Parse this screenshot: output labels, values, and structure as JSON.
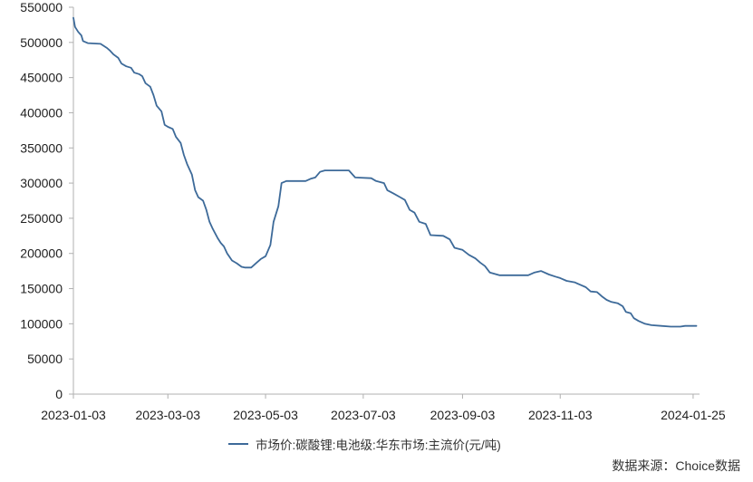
{
  "chart_data": {
    "type": "line",
    "title": "",
    "xlabel": "",
    "ylabel": "",
    "ylim": [
      0,
      550000
    ],
    "y_ticks": [
      0,
      50000,
      100000,
      150000,
      200000,
      250000,
      300000,
      350000,
      400000,
      450000,
      500000,
      550000
    ],
    "y_tick_labels": [
      "0",
      "50000",
      "100000",
      "150000",
      "200000",
      "250000",
      "300000",
      "350000",
      "400000",
      "450000",
      "500000",
      "550000"
    ],
    "x_ticks": [
      "2023-01-03",
      "2023-03-03",
      "2023-05-03",
      "2023-07-03",
      "2023-09-03",
      "2023-11-03",
      "2024-01-25"
    ],
    "x_range": [
      "2023-01-03",
      "2024-01-29"
    ],
    "grid": false,
    "legend_position": "bottom",
    "series": [
      {
        "name": "市场价:碳酸锂:电池级:华东市场:主流价(元/吨)",
        "color": "#3d6a99",
        "points": [
          [
            "2023-01-03",
            535000
          ],
          [
            "2023-01-04",
            522000
          ],
          [
            "2023-01-06",
            515000
          ],
          [
            "2023-01-08",
            510000
          ],
          [
            "2023-01-09",
            502000
          ],
          [
            "2023-01-12",
            499000
          ],
          [
            "2023-01-20",
            498000
          ],
          [
            "2023-01-24",
            492000
          ],
          [
            "2023-01-26",
            488000
          ],
          [
            "2023-01-28",
            483000
          ],
          [
            "2023-01-31",
            478000
          ],
          [
            "2023-02-02",
            470000
          ],
          [
            "2023-02-05",
            466000
          ],
          [
            "2023-02-08",
            464000
          ],
          [
            "2023-02-10",
            457000
          ],
          [
            "2023-02-13",
            455000
          ],
          [
            "2023-02-15",
            452000
          ],
          [
            "2023-02-17",
            442000
          ],
          [
            "2023-02-20",
            437000
          ],
          [
            "2023-02-22",
            425000
          ],
          [
            "2023-02-24",
            410000
          ],
          [
            "2023-02-27",
            402000
          ],
          [
            "2023-03-01",
            383000
          ],
          [
            "2023-03-03",
            380000
          ],
          [
            "2023-03-06",
            377000
          ],
          [
            "2023-03-08",
            366000
          ],
          [
            "2023-03-11",
            357000
          ],
          [
            "2023-03-13",
            340000
          ],
          [
            "2023-03-15",
            327000
          ],
          [
            "2023-03-18",
            312000
          ],
          [
            "2023-03-20",
            290000
          ],
          [
            "2023-03-22",
            280000
          ],
          [
            "2023-03-25",
            275000
          ],
          [
            "2023-03-27",
            262000
          ],
          [
            "2023-03-29",
            245000
          ],
          [
            "2023-03-31",
            235000
          ],
          [
            "2023-04-03",
            222000
          ],
          [
            "2023-04-05",
            215000
          ],
          [
            "2023-04-07",
            210000
          ],
          [
            "2023-04-09",
            200000
          ],
          [
            "2023-04-12",
            190000
          ],
          [
            "2023-04-15",
            186000
          ],
          [
            "2023-04-18",
            181000
          ],
          [
            "2023-04-20",
            180000
          ],
          [
            "2023-04-24",
            180000
          ],
          [
            "2023-04-27",
            186000
          ],
          [
            "2023-04-30",
            192000
          ],
          [
            "2023-05-03",
            196000
          ],
          [
            "2023-05-06",
            212000
          ],
          [
            "2023-05-08",
            245000
          ],
          [
            "2023-05-11",
            267000
          ],
          [
            "2023-05-13",
            300000
          ],
          [
            "2023-05-16",
            303000
          ],
          [
            "2023-05-28",
            303000
          ],
          [
            "2023-05-31",
            306000
          ],
          [
            "2023-06-03",
            308000
          ],
          [
            "2023-06-06",
            316000
          ],
          [
            "2023-06-09",
            318000
          ],
          [
            "2023-06-24",
            318000
          ],
          [
            "2023-06-28",
            308000
          ],
          [
            "2023-07-08",
            307000
          ],
          [
            "2023-07-11",
            303000
          ],
          [
            "2023-07-16",
            300000
          ],
          [
            "2023-07-18",
            290000
          ],
          [
            "2023-07-22",
            285000
          ],
          [
            "2023-07-26",
            280000
          ],
          [
            "2023-07-29",
            276000
          ],
          [
            "2023-08-01",
            262000
          ],
          [
            "2023-08-04",
            258000
          ],
          [
            "2023-08-07",
            245000
          ],
          [
            "2023-08-11",
            242000
          ],
          [
            "2023-08-14",
            226000
          ],
          [
            "2023-08-22",
            225000
          ],
          [
            "2023-08-26",
            220000
          ],
          [
            "2023-08-29",
            208000
          ],
          [
            "2023-09-03",
            205000
          ],
          [
            "2023-09-07",
            198000
          ],
          [
            "2023-09-11",
            193000
          ],
          [
            "2023-09-14",
            187000
          ],
          [
            "2023-09-17",
            182000
          ],
          [
            "2023-09-20",
            173000
          ],
          [
            "2023-09-26",
            169000
          ],
          [
            "2023-10-14",
            169000
          ],
          [
            "2023-10-18",
            173000
          ],
          [
            "2023-10-22",
            175000
          ],
          [
            "2023-10-27",
            170000
          ],
          [
            "2023-10-31",
            167000
          ],
          [
            "2023-11-03",
            165000
          ],
          [
            "2023-11-07",
            161000
          ],
          [
            "2023-11-12",
            159000
          ],
          [
            "2023-11-16",
            155000
          ],
          [
            "2023-11-19",
            152000
          ],
          [
            "2023-11-22",
            146000
          ],
          [
            "2023-11-26",
            145000
          ],
          [
            "2023-11-29",
            139000
          ],
          [
            "2023-12-02",
            134000
          ],
          [
            "2023-12-05",
            131000
          ],
          [
            "2023-12-09",
            129000
          ],
          [
            "2023-12-12",
            125000
          ],
          [
            "2023-12-14",
            117000
          ],
          [
            "2023-12-17",
            115000
          ],
          [
            "2023-12-19",
            108000
          ],
          [
            "2023-12-22",
            104000
          ],
          [
            "2023-12-26",
            100000
          ],
          [
            "2023-12-30",
            98000
          ],
          [
            "2024-01-05",
            97000
          ],
          [
            "2024-01-11",
            96000
          ],
          [
            "2024-01-17",
            96000
          ],
          [
            "2024-01-20",
            97000
          ],
          [
            "2024-01-27",
            97000
          ]
        ]
      }
    ]
  },
  "legend": {
    "label": "市场价:碳酸锂:电池级:华东市场:主流价(元/吨)"
  },
  "source": {
    "text": "数据来源：Choice数据"
  }
}
